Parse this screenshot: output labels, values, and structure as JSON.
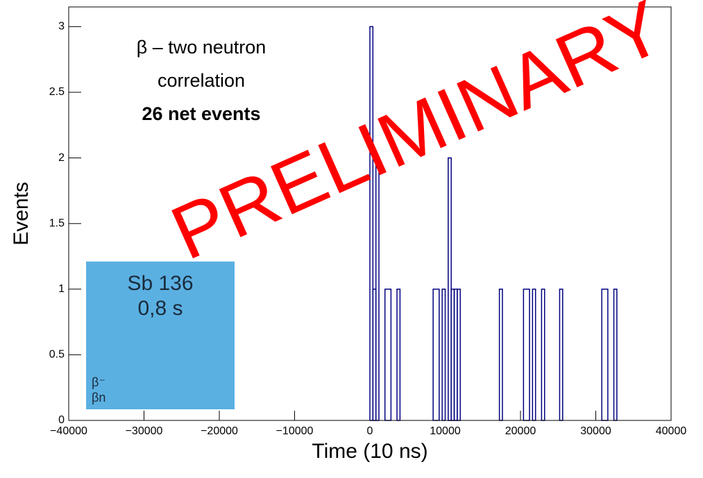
{
  "chart_data": {
    "type": "histogram",
    "x_label": "Time (10 ns)",
    "y_label": "Events",
    "bins": [
      -40000,
      0,
      400,
      800,
      1200,
      2000,
      2800,
      3600,
      4000,
      8400,
      9200,
      9600,
      10000,
      10400,
      10800,
      11200,
      11600,
      12000,
      17200,
      17600,
      20400,
      21200,
      21600,
      22000,
      22800,
      23200,
      25200,
      25600,
      30800,
      31600,
      32400,
      32800,
      40000
    ],
    "counts": [
      0,
      3,
      1,
      2,
      0,
      1,
      0,
      1,
      0,
      1,
      0,
      1,
      0,
      2,
      1,
      1,
      1,
      0,
      1,
      0,
      1,
      0,
      1,
      0,
      1,
      0,
      1,
      0,
      1,
      0,
      1,
      0
    ],
    "color": "#000080",
    "xlim": [
      -40000,
      40000
    ],
    "xticks": [
      {
        "value": -40000,
        "label": "−40000"
      },
      {
        "value": -30000,
        "label": "−30000"
      },
      {
        "value": -20000,
        "label": "−20000"
      },
      {
        "value": -10000,
        "label": "−10000"
      },
      0,
      10000,
      20000,
      30000,
      40000
    ],
    "ylim": [
      0,
      3.15
    ],
    "yticks": [
      0,
      0.5,
      1,
      1.5,
      2,
      2.5,
      3
    ],
    "annotations": [
      "β – two neutron",
      "correlation",
      "26 net events"
    ],
    "watermark": "PRELIMINARY",
    "inset_labels": [
      "Sb 136",
      "0,8 s",
      "β⁻",
      "βn"
    ]
  }
}
